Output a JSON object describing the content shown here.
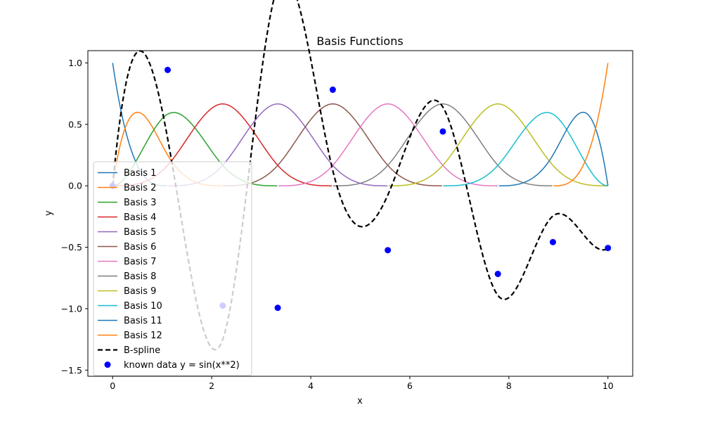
{
  "chart_data": {
    "type": "line",
    "title": "Basis Functions",
    "xlabel": "x",
    "ylabel": "y",
    "xlim": [
      -0.5,
      10.5
    ],
    "ylim": [
      -1.55,
      1.1
    ],
    "xticks": [
      0,
      2,
      4,
      6,
      8,
      10
    ],
    "yticks": [
      -1.5,
      -1.0,
      -0.5,
      0.0,
      0.5,
      1.0
    ],
    "xtick_labels": [
      "0",
      "2",
      "4",
      "6",
      "8",
      "10"
    ],
    "ytick_labels": [
      "−1.5",
      "−1.0",
      "−0.5",
      "0.0",
      "0.5",
      "1.0"
    ],
    "grid": false,
    "legend_position": "lower-left",
    "spline": {
      "degree": 3,
      "knots": [
        0,
        0,
        0,
        0,
        1.1111,
        2.2222,
        3.3333,
        4.4444,
        5.5556,
        6.6667,
        7.7778,
        8.8889,
        10,
        10,
        10,
        10
      ],
      "basis_count": 12
    },
    "series": [
      {
        "name": "Basis 1",
        "color": "#1f77b4",
        "style": "solid"
      },
      {
        "name": "Basis 2",
        "color": "#ff7f0e",
        "style": "solid"
      },
      {
        "name": "Basis 3",
        "color": "#2ca02c",
        "style": "solid"
      },
      {
        "name": "Basis 4",
        "color": "#d62728",
        "style": "solid"
      },
      {
        "name": "Basis 5",
        "color": "#9467bd",
        "style": "solid"
      },
      {
        "name": "Basis 6",
        "color": "#8c564b",
        "style": "solid"
      },
      {
        "name": "Basis 7",
        "color": "#e377c2",
        "style": "solid"
      },
      {
        "name": "Basis 8",
        "color": "#7f7f7f",
        "style": "solid"
      },
      {
        "name": "Basis 9",
        "color": "#bcbd22",
        "style": "solid"
      },
      {
        "name": "Basis 10",
        "color": "#17becf",
        "style": "solid"
      },
      {
        "name": "Basis 11",
        "color": "#1f77b4",
        "style": "solid"
      },
      {
        "name": "Basis 12",
        "color": "#ff7f0e",
        "style": "solid"
      },
      {
        "name": "B-spline",
        "color": "#000000",
        "style": "dashed",
        "coefficients": [
          0.0,
          1.6,
          0.8,
          -2.9,
          3.3,
          -0.55,
          -0.35,
          1.5,
          -1.8,
          0.35,
          -0.6,
          -0.51
        ]
      },
      {
        "name": "known data y = sin(x**2)",
        "color": "#0000ff",
        "style": "markers",
        "x": [
          0,
          1.1111,
          2.2222,
          3.3333,
          4.4444,
          5.5556,
          6.6667,
          7.7778,
          8.8889,
          10
        ],
        "y": [
          0.0,
          0.943,
          -0.975,
          -0.993,
          0.782,
          -0.524,
          0.442,
          -0.717,
          -0.458,
          -0.506
        ]
      }
    ]
  }
}
